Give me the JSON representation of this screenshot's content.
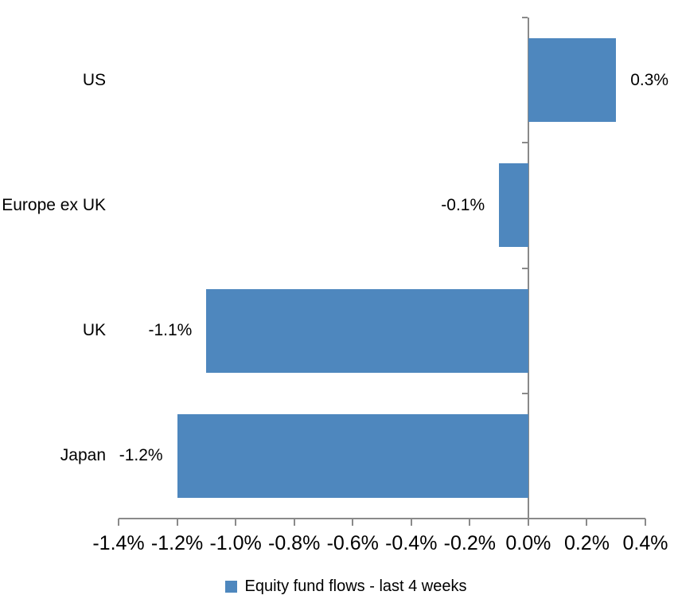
{
  "chart_data": {
    "type": "bar",
    "orientation": "horizontal",
    "title": "",
    "categories": [
      "US",
      "Europe ex UK",
      "UK",
      "Japan"
    ],
    "series": [
      {
        "name": "Equity fund flows - last 4 weeks",
        "values": [
          0.3,
          -0.1,
          -1.1,
          -1.2
        ],
        "value_labels": [
          "0.3%",
          "-0.1%",
          "-1.1%",
          "-1.2%"
        ]
      }
    ],
    "xlabel": "",
    "ylabel": "",
    "xlim": [
      -1.4,
      0.4
    ],
    "x_ticks": [
      -1.4,
      -1.2,
      -1.0,
      -0.8,
      -0.6,
      -0.4,
      -0.2,
      0.0,
      0.2,
      0.4
    ],
    "x_tick_labels": [
      "-1.4%",
      "-1.2%",
      "-1.0%",
      "-0.8%",
      "-0.6%",
      "-0.4%",
      "-0.2%",
      "0.0%",
      "0.2%",
      "0.4%"
    ],
    "grid": false,
    "legend_position": "bottom-center",
    "value_label_position": "outside-end",
    "colors": {
      "bar": "#4E87BE",
      "axis": "#8A8A8A",
      "text": "#000000",
      "background": "#FFFFFF"
    }
  },
  "legend": {
    "swatch_icon": "legend-color-swatch",
    "label": "Equity fund flows - last 4 weeks"
  }
}
